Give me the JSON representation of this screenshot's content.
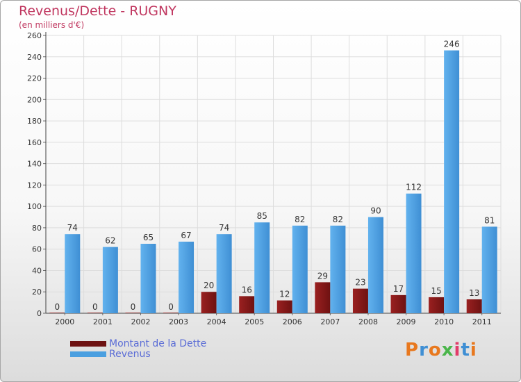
{
  "title": "Revenus/Dette - RUGNY",
  "subtitle": "(en milliers d'€)",
  "logo": {
    "text": "Proxiti"
  },
  "colors": {
    "dette": "#8b1a1a",
    "revenus": "#4a9fe0",
    "title": "#c0365f",
    "legend_text": "#5a6cd6"
  },
  "legend": [
    {
      "label": "Montant de la Dette",
      "color": "#8b1a1a"
    },
    {
      "label": "Revenus",
      "color": "#4a9fe0"
    }
  ],
  "chart_data": {
    "type": "bar",
    "title": "Revenus/Dette - RUGNY",
    "ylabel": "(en milliers d'€)",
    "xlabel": "",
    "ylim": [
      0,
      260
    ],
    "yticks": [
      0,
      20,
      40,
      60,
      80,
      100,
      120,
      140,
      160,
      180,
      200,
      220,
      240,
      260
    ],
    "grid": true,
    "legend_position": "bottom-left",
    "categories": [
      "2000",
      "2001",
      "2002",
      "2003",
      "2004",
      "2005",
      "2006",
      "2007",
      "2008",
      "2009",
      "2010",
      "2011"
    ],
    "series": [
      {
        "name": "Montant de la Dette",
        "values": [
          0,
          0,
          0,
          0,
          20,
          16,
          12,
          29,
          23,
          17,
          15,
          13
        ]
      },
      {
        "name": "Revenus",
        "values": [
          74,
          62,
          65,
          67,
          74,
          85,
          82,
          82,
          90,
          112,
          246,
          81
        ]
      }
    ]
  }
}
